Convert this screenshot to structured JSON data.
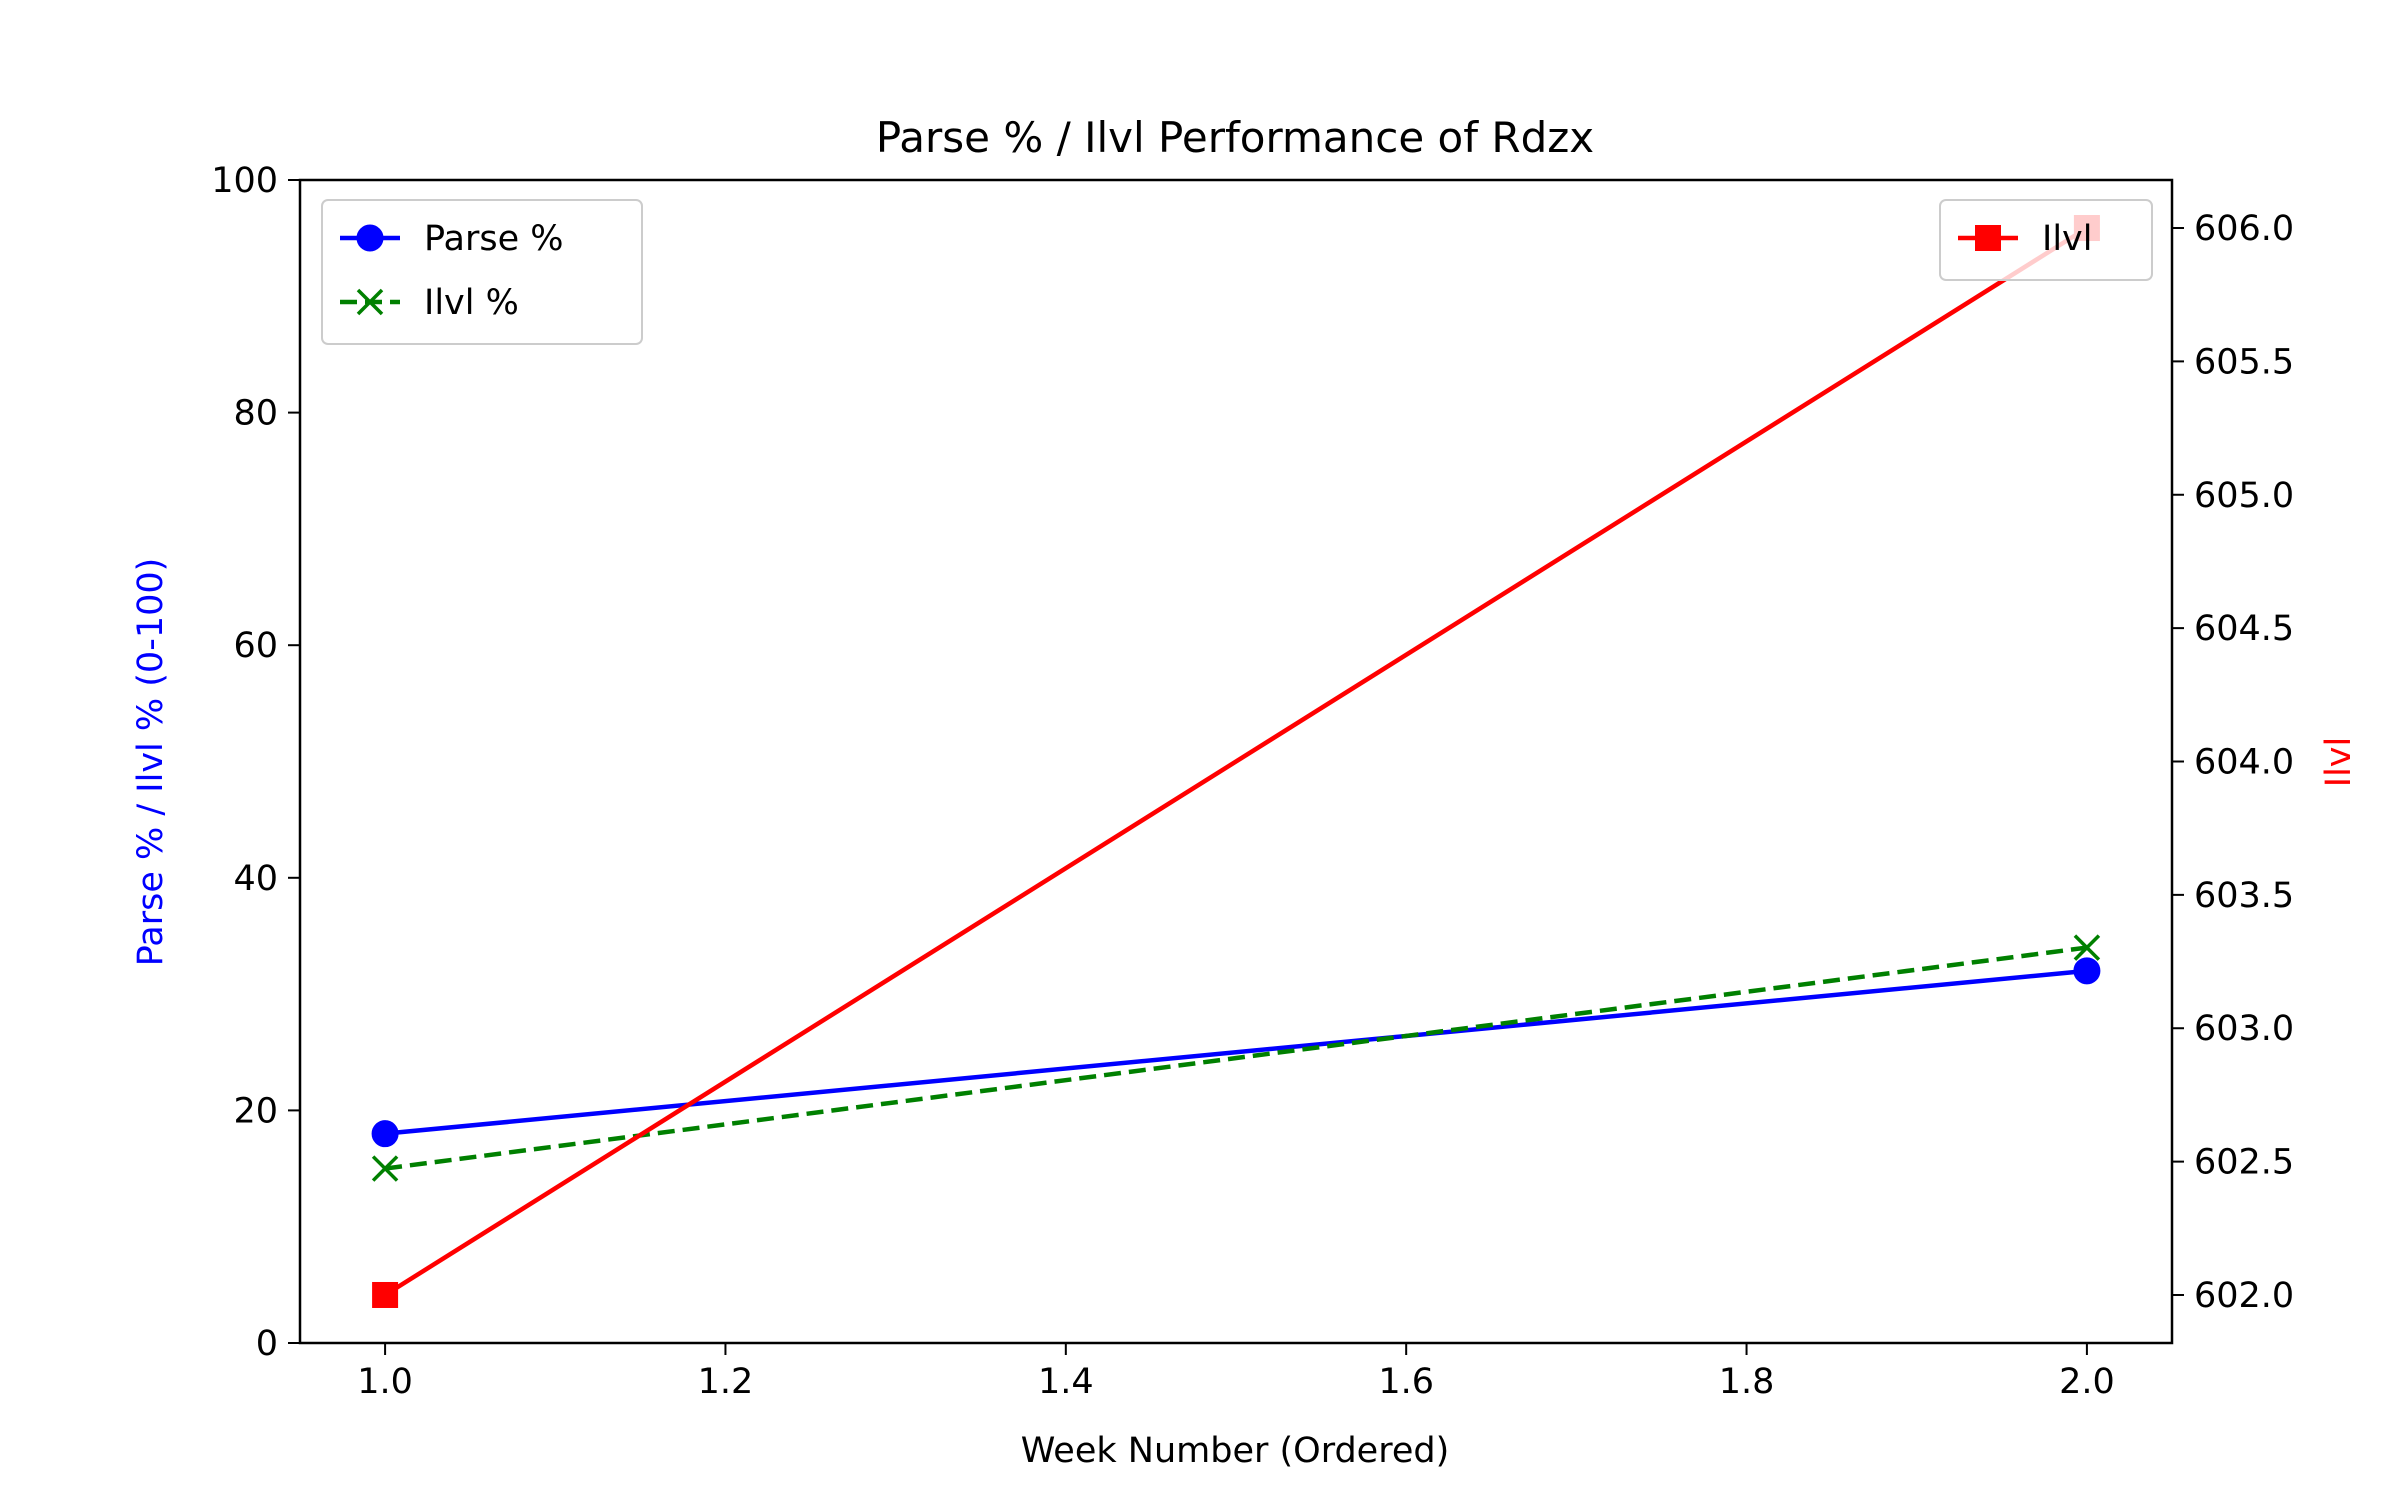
{
  "chart_data": {
    "type": "line",
    "title": "Parse % / Ilvl Performance of Rdzx",
    "xlabel": "Week Number (Ordered)",
    "ylabel": "Parse % / Ilvl % (0-100)",
    "y2label": "Ilvl",
    "x": [
      1.0,
      2.0
    ],
    "xlim": [
      0.95,
      2.05
    ],
    "ylim": [
      0,
      100
    ],
    "y2lim": [
      601.82,
      606.18
    ],
    "xticks": [
      "1.0",
      "1.2",
      "1.4",
      "1.6",
      "1.8",
      "2.0"
    ],
    "yticks": [
      "0",
      "20",
      "40",
      "60",
      "80",
      "100"
    ],
    "y2ticks": [
      "602.0",
      "602.5",
      "603.0",
      "603.5",
      "604.0",
      "604.5",
      "605.0",
      "605.5",
      "606.0"
    ],
    "grid": false,
    "series": [
      {
        "name": "Parse %",
        "axis": "left",
        "values": [
          18,
          32
        ],
        "color": "#0000ff",
        "marker": "circle",
        "linestyle": "solid"
      },
      {
        "name": "Ilvl %",
        "axis": "left",
        "values": [
          15,
          34
        ],
        "color": "#008000",
        "marker": "x",
        "linestyle": "dashed"
      },
      {
        "name": "Ilvl",
        "axis": "right",
        "values": [
          602.0,
          606.0
        ],
        "color": "#ff0000",
        "marker": "square",
        "linestyle": "solid"
      }
    ],
    "legends": [
      {
        "placement": "upper-left",
        "entries": [
          "Parse %",
          "Ilvl %"
        ]
      },
      {
        "placement": "upper-right",
        "entries": [
          "Ilvl"
        ]
      }
    ],
    "ylabel_color": "#0000ff",
    "y2label_color": "#ff0000"
  }
}
